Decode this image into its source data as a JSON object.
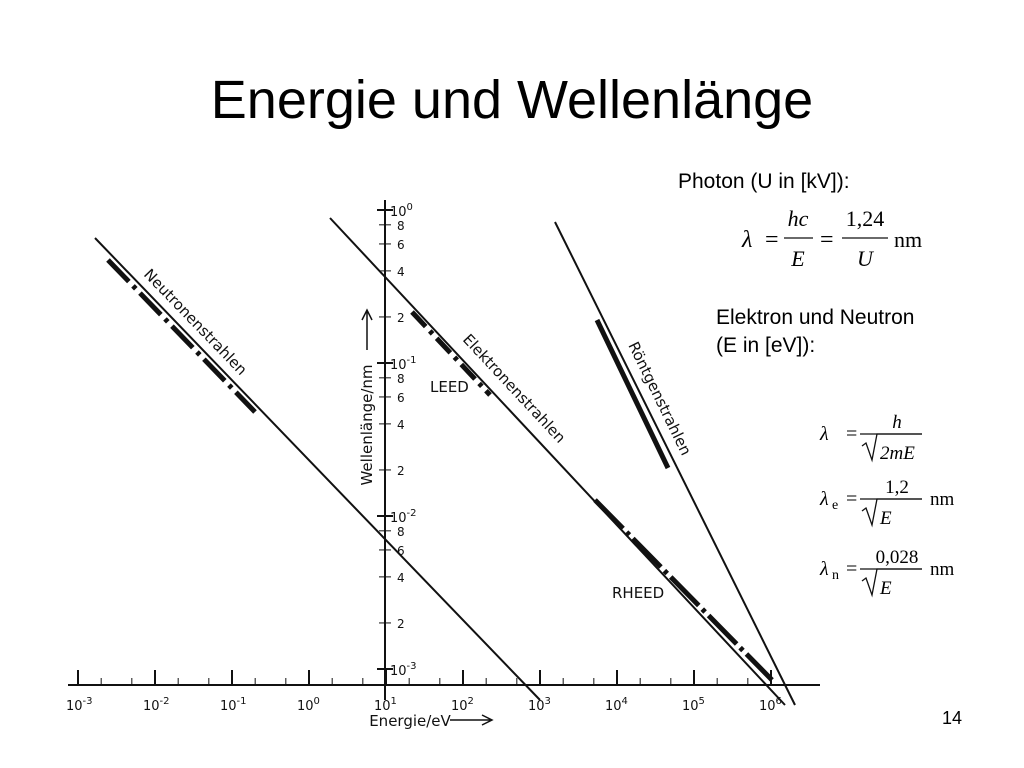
{
  "slide": {
    "title": "Energie und Wellenlänge",
    "page_number": "14"
  },
  "photon": {
    "heading": "Photon (U in [kV]):",
    "formula": {
      "lhs": "λ",
      "eq1": "=",
      "num1": "hc",
      "den1": "E",
      "eq2": "=",
      "num2": "1,24",
      "den2": "U",
      "unit": "nm"
    }
  },
  "electron_neutron": {
    "heading_lines": [
      "Elektron und Neutron",
      "(E in [eV]):"
    ],
    "formulas": [
      {
        "lhs": "λ",
        "sub": null,
        "eq": "=",
        "num": "h",
        "den": "2mE",
        "unit": null
      },
      {
        "lhs": "λ",
        "sub": "e",
        "eq": "=",
        "num": "1,2",
        "den": "E",
        "unit": "nm"
      },
      {
        "lhs": "λ",
        "sub": "n",
        "eq": "=",
        "num": "0,028",
        "den": "E",
        "unit": "nm"
      }
    ]
  },
  "figure": {
    "x_axis_label": "Energie/eV",
    "y_axis_label": "Wellenlänge/nm",
    "x_ticks": [
      {
        "base": "10",
        "exp": "-3"
      },
      {
        "base": "10",
        "exp": "-2"
      },
      {
        "base": "10",
        "exp": "-1"
      },
      {
        "base": "10",
        "exp": "0"
      },
      {
        "base": "10",
        "exp": "1"
      },
      {
        "base": "10",
        "exp": "2"
      },
      {
        "base": "10",
        "exp": "3"
      },
      {
        "base": "10",
        "exp": "4"
      },
      {
        "base": "10",
        "exp": "5"
      },
      {
        "base": "10",
        "exp": "6"
      }
    ],
    "y_decades": [
      {
        "base": "10",
        "exp": "0"
      },
      {
        "base": "10",
        "exp": "-1"
      },
      {
        "base": "10",
        "exp": "-2"
      },
      {
        "base": "10",
        "exp": "-3"
      }
    ],
    "y_minor_labels": [
      "8",
      "6",
      "4",
      "2"
    ],
    "line_labels": [
      "Neutronenstrahlen",
      "Elektronenstrahlen",
      "Röntgenstrahlen"
    ],
    "region_labels": [
      "LEED",
      "RHEED"
    ]
  }
}
